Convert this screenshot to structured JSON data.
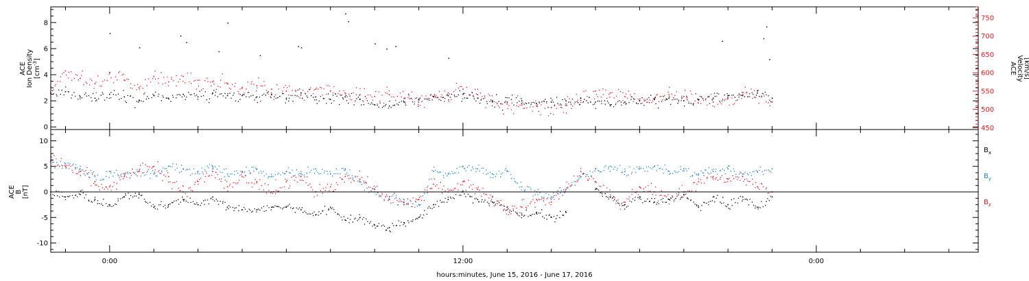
{
  "chart_data": [
    {
      "type": "scatter",
      "left_axis": {
        "label_lines": [
          "ACE",
          "Ion Density"
        ],
        "unit_base": "[cm",
        "unit_sup": "-3",
        "unit_end": "]",
        "ylim": [
          -0.2,
          9.2
        ],
        "ticks": [
          0,
          2,
          4,
          6,
          8
        ],
        "tick_labels": [
          "0",
          "2",
          "4",
          "6",
          "8"
        ]
      },
      "right_axis": {
        "label_lines": [
          "ACE",
          "Velocity",
          "[km/s]"
        ],
        "ylim": [
          445,
          780
        ],
        "ticks": [
          450,
          500,
          550,
          600,
          650,
          700,
          750
        ],
        "tick_labels": [
          "450",
          "500",
          "550",
          "600",
          "650",
          "700",
          "750"
        ],
        "color": "#e8141c"
      },
      "series": [
        {
          "color": "#000000",
          "axis": "left",
          "x": [
            -2.0,
            -1.5,
            -1.0,
            -0.5,
            0.0,
            0.5,
            1.0,
            1.5,
            2.0,
            2.5,
            3.0,
            3.5,
            4.0,
            4.5,
            5.0,
            5.5,
            6.0,
            6.5,
            7.0,
            7.5,
            8.0,
            8.5,
            9.0,
            9.5,
            10.0,
            10.5,
            11.0,
            11.5,
            12.0,
            12.5,
            13.0,
            13.5,
            14.0,
            14.5,
            15.0,
            15.5,
            16.0,
            16.5,
            17.0,
            17.5,
            18.0,
            18.5,
            19.0,
            19.5,
            20.0,
            20.5,
            21.0,
            21.5,
            22.0,
            22.5
          ],
          "y": [
            2.6,
            2.7,
            2.3,
            2.2,
            2.5,
            2.3,
            2.0,
            2.4,
            2.2,
            2.5,
            2.3,
            2.6,
            2.4,
            2.4,
            2.3,
            2.5,
            2.2,
            2.6,
            2.3,
            2.1,
            2.3,
            2.1,
            1.7,
            1.6,
            1.9,
            2.1,
            2.3,
            2.4,
            2.5,
            2.2,
            2.0,
            1.9,
            2.0,
            1.8,
            1.9,
            2.0,
            2.2,
            1.9,
            1.7,
            1.9,
            2.0,
            2.1,
            2.2,
            2.0,
            2.1,
            2.2,
            2.4,
            2.4,
            2.6,
            2.2
          ]
        },
        {
          "color": "#e8141c",
          "axis": "right",
          "x": [
            -2.0,
            -1.5,
            -1.0,
            -0.5,
            0.0,
            0.5,
            1.0,
            1.5,
            2.0,
            2.5,
            3.0,
            3.5,
            4.0,
            4.5,
            5.0,
            5.5,
            6.0,
            6.5,
            7.0,
            7.5,
            8.0,
            8.5,
            9.0,
            9.5,
            10.0,
            10.5,
            11.0,
            11.5,
            12.0,
            12.5,
            13.0,
            13.5,
            14.0,
            14.5,
            15.0,
            15.5,
            16.0,
            16.5,
            17.0,
            17.5,
            18.0,
            18.5,
            19.0,
            19.5,
            20.0,
            20.5,
            21.0,
            21.5,
            22.0,
            22.5
          ],
          "y": [
            560,
            605,
            585,
            570,
            600,
            580,
            560,
            590,
            575,
            590,
            580,
            575,
            570,
            560,
            565,
            555,
            550,
            545,
            555,
            550,
            545,
            540,
            535,
            540,
            530,
            525,
            535,
            545,
            555,
            540,
            520,
            515,
            512,
            510,
            505,
            515,
            525,
            550,
            545,
            535,
            525,
            530,
            540,
            535,
            525,
            520,
            530,
            540,
            550,
            520
          ]
        }
      ],
      "outliers": {
        "x": [
          0.0,
          2.4,
          2.6,
          4.0,
          6.4,
          6.5,
          8.0,
          8.1,
          9.0,
          9.4,
          9.7,
          11.5,
          20.8,
          22.2,
          22.3,
          22.4,
          1.0,
          3.7,
          5.1
        ],
        "y": [
          7.2,
          7.0,
          6.5,
          8.0,
          6.2,
          6.1,
          8.7,
          8.1,
          6.4,
          6.0,
          6.2,
          5.3,
          6.6,
          6.8,
          7.7,
          5.2,
          6.1,
          5.8,
          5.5
        ]
      }
    },
    {
      "type": "scatter",
      "left_axis": {
        "label_lines": [
          "ACE",
          "B",
          "[nT]"
        ],
        "ylim": [
          -11.8,
          12.2
        ],
        "ticks": [
          -10,
          -5,
          0,
          5,
          10
        ],
        "tick_labels": [
          "-10",
          "-5",
          "0",
          "5",
          "10"
        ]
      },
      "zero_line": true,
      "series": [
        {
          "name_base": "B",
          "name_sub": "x",
          "color": "#000000",
          "x": [
            -2.0,
            -1.5,
            -1.0,
            -0.5,
            0.0,
            0.5,
            1.0,
            1.5,
            2.0,
            2.5,
            3.0,
            3.5,
            4.0,
            4.5,
            5.0,
            5.5,
            6.0,
            6.5,
            7.0,
            7.5,
            8.0,
            8.5,
            9.0,
            9.5,
            10.0,
            10.5,
            11.0,
            11.5,
            12.0,
            12.5,
            13.0,
            13.5,
            14.0,
            14.5,
            15.0,
            15.5,
            16.0,
            16.5,
            17.0,
            17.5,
            18.0,
            18.5,
            19.0,
            19.5,
            20.0,
            20.5,
            21.0,
            21.5,
            22.0,
            22.5
          ],
          "y": [
            0.0,
            -1.0,
            -0.5,
            -1.5,
            -2.5,
            -1.0,
            -0.5,
            -3.0,
            -2.5,
            -1.5,
            -2.5,
            -1.0,
            -3.0,
            -3.5,
            -3.5,
            -3.0,
            -3.0,
            -3.5,
            -4.5,
            -3.0,
            -5.5,
            -5.0,
            -6.5,
            -7.0,
            -6.0,
            -5.0,
            -2.5,
            -1.5,
            0.0,
            -1.5,
            -2.0,
            -3.0,
            -4.5,
            -4.0,
            -5.0,
            -4.0,
            null,
            0.5,
            -1.0,
            -2.5,
            -1.0,
            -2.0,
            -1.5,
            -0.5,
            -3.0,
            -1.0,
            -2.5,
            -1.0,
            -3.0,
            -1.0
          ]
        },
        {
          "name_base": "B",
          "name_sub": "y",
          "color": "#1f7fd6",
          "x": [
            -2.0,
            -1.5,
            -1.0,
            -0.5,
            0.0,
            0.5,
            1.0,
            1.5,
            2.0,
            2.5,
            3.0,
            3.5,
            4.0,
            4.5,
            5.0,
            5.5,
            6.0,
            6.5,
            7.0,
            7.5,
            8.0,
            8.5,
            9.0,
            9.5,
            10.0,
            10.5,
            11.0,
            11.5,
            12.0,
            12.5,
            13.0,
            13.5,
            14.0,
            14.5,
            15.0,
            15.5,
            16.0,
            16.5,
            17.0,
            17.5,
            18.0,
            18.5,
            19.0,
            19.5,
            20.0,
            20.5,
            21.0,
            21.5,
            22.0,
            22.5
          ],
          "y": [
            6.0,
            5.5,
            4.5,
            3.0,
            4.0,
            3.5,
            4.0,
            3.5,
            5.0,
            4.5,
            4.0,
            5.0,
            3.5,
            4.0,
            4.5,
            3.0,
            4.0,
            3.5,
            4.5,
            3.5,
            4.5,
            2.0,
            0.0,
            -1.0,
            -2.0,
            -2.5,
            4.0,
            3.5,
            5.0,
            4.5,
            3.5,
            4.0,
            1.0,
            0.0,
            -1.0,
            0.5,
            3.0,
            4.5,
            5.0,
            4.0,
            4.5,
            5.0,
            4.0,
            4.5,
            3.5,
            4.0,
            4.5,
            3.5,
            4.0,
            4.5
          ]
        },
        {
          "name_base": "B",
          "name_sub": "z",
          "color": "#e8141c",
          "x": [
            -2.0,
            -1.5,
            -1.0,
            -0.5,
            0.0,
            0.5,
            1.0,
            1.5,
            2.0,
            2.5,
            3.0,
            3.5,
            4.0,
            4.5,
            5.0,
            5.5,
            6.0,
            6.5,
            7.0,
            7.5,
            8.0,
            8.5,
            9.0,
            9.5,
            10.0,
            10.5,
            11.0,
            11.5,
            12.0,
            12.5,
            13.0,
            13.5,
            14.0,
            14.5,
            15.0,
            15.5,
            16.0,
            16.5,
            17.0,
            17.5,
            18.0,
            18.5,
            19.0,
            19.5,
            20.0,
            20.5,
            21.0,
            21.5,
            22.0,
            22.5
          ],
          "y": [
            6.0,
            5.0,
            4.0,
            2.0,
            1.0,
            3.0,
            4.0,
            5.0,
            3.0,
            0.0,
            2.0,
            4.0,
            1.0,
            3.0,
            2.0,
            0.0,
            2.0,
            3.0,
            0.0,
            1.0,
            3.0,
            2.5,
            0.5,
            -1.5,
            -2.5,
            -1.5,
            1.5,
            0.0,
            2.0,
            0.5,
            -1.0,
            -3.5,
            -3.0,
            -1.5,
            -2.0,
            0.5,
            4.0,
            2.0,
            -1.0,
            -2.0,
            1.0,
            0.0,
            -1.5,
            0.0,
            2.0,
            3.0,
            2.5,
            3.0,
            1.0,
            0.0
          ]
        }
      ]
    }
  ],
  "time_axis": {
    "xlim": [
      -2.0,
      29.5
    ],
    "labeled_ticks": [
      {
        "x": 0,
        "label": "0:00"
      },
      {
        "x": 12,
        "label": "12:00"
      },
      {
        "x": 24,
        "label": "0:00"
      }
    ],
    "xlabel": "hours:minutes, June 15, 2016 - June 17, 2016"
  }
}
